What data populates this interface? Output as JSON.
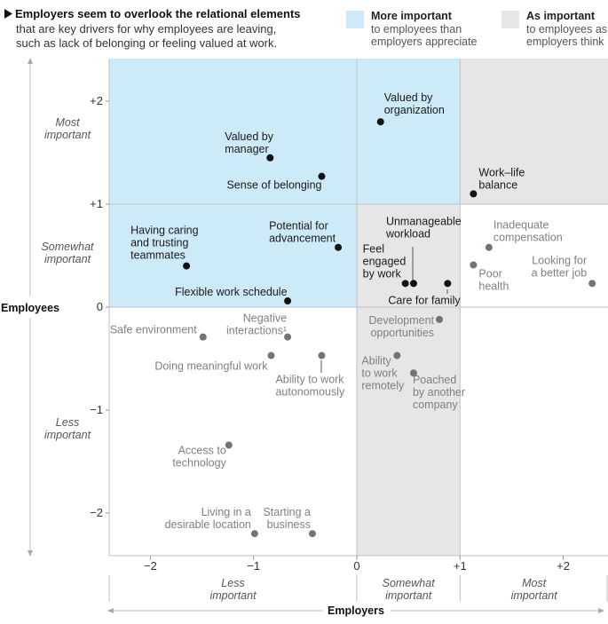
{
  "header": {
    "title": "Employers seem to overlook the relational elements",
    "subtitle_line1": "that are key drivers for why employees are leaving,",
    "subtitle_line2": "such as lack of belonging or feeling valued at work."
  },
  "legend": {
    "more_title": "More important",
    "more_line1": "to employees than",
    "more_line2": "employers appreciate",
    "more_color": "#cdeaf8",
    "as_title": "As important",
    "as_line1": "to employees as",
    "as_line2": "employers think",
    "as_color": "#e6e6e6"
  },
  "colors": {
    "dark_dot": "#111111",
    "gray_dot": "#6f7478",
    "dark_text": "#1a1a1a",
    "gray_text": "#808080"
  },
  "chart_data": {
    "type": "scatter",
    "xlabel": "Employers",
    "ylabel": "Employees",
    "xlim": [
      -2.4,
      2.4
    ],
    "ylim": [
      -2.4,
      2.4
    ],
    "x_ticks": [
      "−2",
      "−1",
      "0",
      "+1",
      "+2"
    ],
    "y_ticks": [
      "+2",
      "+1",
      "0",
      "−1",
      "−2"
    ],
    "x_category_labels": [
      [
        "Less",
        "important"
      ],
      [
        "Somewhat",
        "important"
      ],
      [
        "Most",
        "important"
      ]
    ],
    "y_category_labels": [
      [
        "Most",
        "important"
      ],
      [
        "Somewhat",
        "important"
      ],
      [
        "Less",
        "important"
      ]
    ],
    "points": [
      {
        "label": [
          "Valued by",
          "organization"
        ],
        "x": 0.23,
        "y": 1.8,
        "highlight": true
      },
      {
        "label": [
          "Valued by",
          "manager"
        ],
        "x": -0.84,
        "y": 1.45,
        "highlight": true
      },
      {
        "label": [
          "Sense of belonging"
        ],
        "x": -0.34,
        "y": 1.27,
        "highlight": true
      },
      {
        "label": [
          "Work–life",
          "balance"
        ],
        "x": 1.13,
        "y": 1.1,
        "highlight": true
      },
      {
        "label": [
          "Having caring",
          "and trusting",
          "teammates"
        ],
        "x": -1.65,
        "y": 0.4,
        "highlight": true
      },
      {
        "label": [
          "Potential for",
          "advancement"
        ],
        "x": -0.18,
        "y": 0.58,
        "highlight": true
      },
      {
        "label": [
          "Flexible work schedule"
        ],
        "x": -0.67,
        "y": 0.06,
        "highlight": true
      },
      {
        "label": [
          "Unmanageable",
          "workload"
        ],
        "x": 0.55,
        "y": 0.23,
        "highlight": true
      },
      {
        "label": [
          "Feel",
          "engaged",
          "by work"
        ],
        "x": 0.47,
        "y": 0.23,
        "highlight": true
      },
      {
        "label": [
          "Care for family"
        ],
        "x": 0.88,
        "y": 0.23,
        "highlight": true
      },
      {
        "label": [
          "Inadequate",
          "compensation"
        ],
        "x": 1.28,
        "y": 0.58,
        "highlight": false
      },
      {
        "label": [
          "Poor",
          "health"
        ],
        "x": 1.13,
        "y": 0.41,
        "highlight": false
      },
      {
        "label": [
          "Looking for",
          "a better job"
        ],
        "x": 2.28,
        "y": 0.23,
        "highlight": false
      },
      {
        "label": [
          "Safe environment"
        ],
        "x": -1.49,
        "y": -0.29,
        "highlight": false
      },
      {
        "label": [
          "Negative",
          "interactions¹"
        ],
        "x": -0.67,
        "y": -0.29,
        "highlight": false
      },
      {
        "label": [
          "Doing meaningful work"
        ],
        "x": -0.83,
        "y": -0.47,
        "highlight": false
      },
      {
        "label": [
          "Ability to work",
          "autonomously"
        ],
        "x": -0.34,
        "y": -0.47,
        "highlight": false
      },
      {
        "label": [
          "Development",
          "opportunities"
        ],
        "x": 0.8,
        "y": -0.12,
        "highlight": false
      },
      {
        "label": [
          "Ability",
          "to work",
          "remotely"
        ],
        "x": 0.39,
        "y": -0.47,
        "highlight": false
      },
      {
        "label": [
          "Poached",
          "by another",
          "company"
        ],
        "x": 0.55,
        "y": -0.64,
        "highlight": false
      },
      {
        "label": [
          "Access to",
          "technology"
        ],
        "x": -1.24,
        "y": -1.34,
        "highlight": false
      },
      {
        "label": [
          "Living in a",
          "desirable location"
        ],
        "x": -0.99,
        "y": -2.2,
        "highlight": false
      },
      {
        "label": [
          "Starting a",
          "business"
        ],
        "x": -0.43,
        "y": -2.2,
        "highlight": false
      }
    ]
  }
}
